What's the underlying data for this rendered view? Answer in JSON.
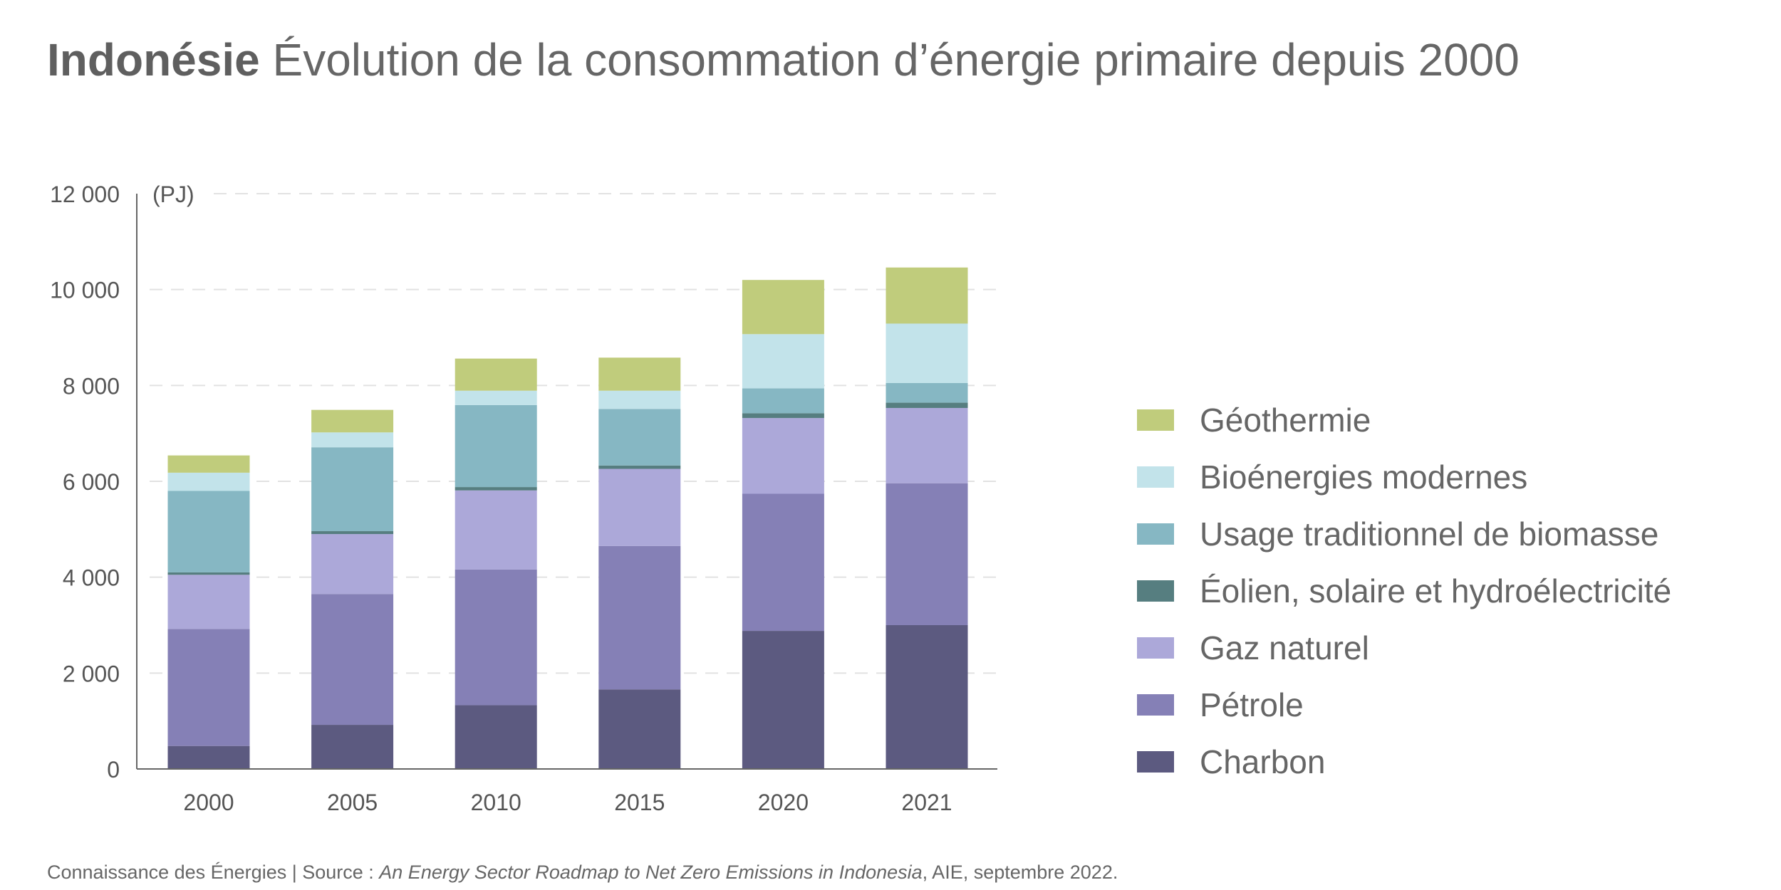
{
  "title": {
    "country": "Indonésie",
    "text": "Évolution de la consommation d’énergie primaire depuis 2000"
  },
  "chart_data": {
    "type": "bar",
    "stacked": true,
    "unit_label": "(PJ)",
    "categories": [
      "2000",
      "2005",
      "2010",
      "2015",
      "2020",
      "2021"
    ],
    "ylim": [
      0,
      12000
    ],
    "yticks": [
      0,
      2000,
      4000,
      6000,
      8000,
      10000,
      12000
    ],
    "ytick_labels": [
      "0",
      "2 000",
      "4 000",
      "6 000",
      "8 000",
      "10 000",
      "12 000"
    ],
    "grid": "horizontal dashed",
    "legend_position": "right",
    "series": [
      {
        "name": "Charbon",
        "color": "#5c5a80",
        "values": [
          480,
          920,
          1330,
          1660,
          2880,
          3000
        ]
      },
      {
        "name": "Pétrole",
        "color": "#8580b6",
        "values": [
          2440,
          2730,
          2830,
          2990,
          2860,
          2960
        ]
      },
      {
        "name": "Gaz naturel",
        "color": "#aca8d9",
        "values": [
          1130,
          1250,
          1650,
          1610,
          1580,
          1570
        ]
      },
      {
        "name": "Éolien, solaire et hydroélectricité",
        "color": "#567e80",
        "values": [
          50,
          60,
          70,
          70,
          100,
          110
        ]
      },
      {
        "name": "Usage traditionnel de biomasse",
        "color": "#86b7c3",
        "values": [
          1700,
          1750,
          1710,
          1180,
          520,
          410
        ]
      },
      {
        "name": "Bioénergies modernes",
        "color": "#c2e3ea",
        "values": [
          380,
          310,
          300,
          380,
          1130,
          1240
        ]
      },
      {
        "name": "Géothermie",
        "color": "#c0cc7c",
        "values": [
          360,
          470,
          670,
          690,
          1130,
          1170
        ]
      }
    ]
  },
  "source": {
    "prefix": "Connaissance des Énergies | Source : ",
    "title": "An Energy Sector Roadmap to Net Zero Emissions in Indonesia",
    "suffix": ", AIE, septembre 2022."
  }
}
